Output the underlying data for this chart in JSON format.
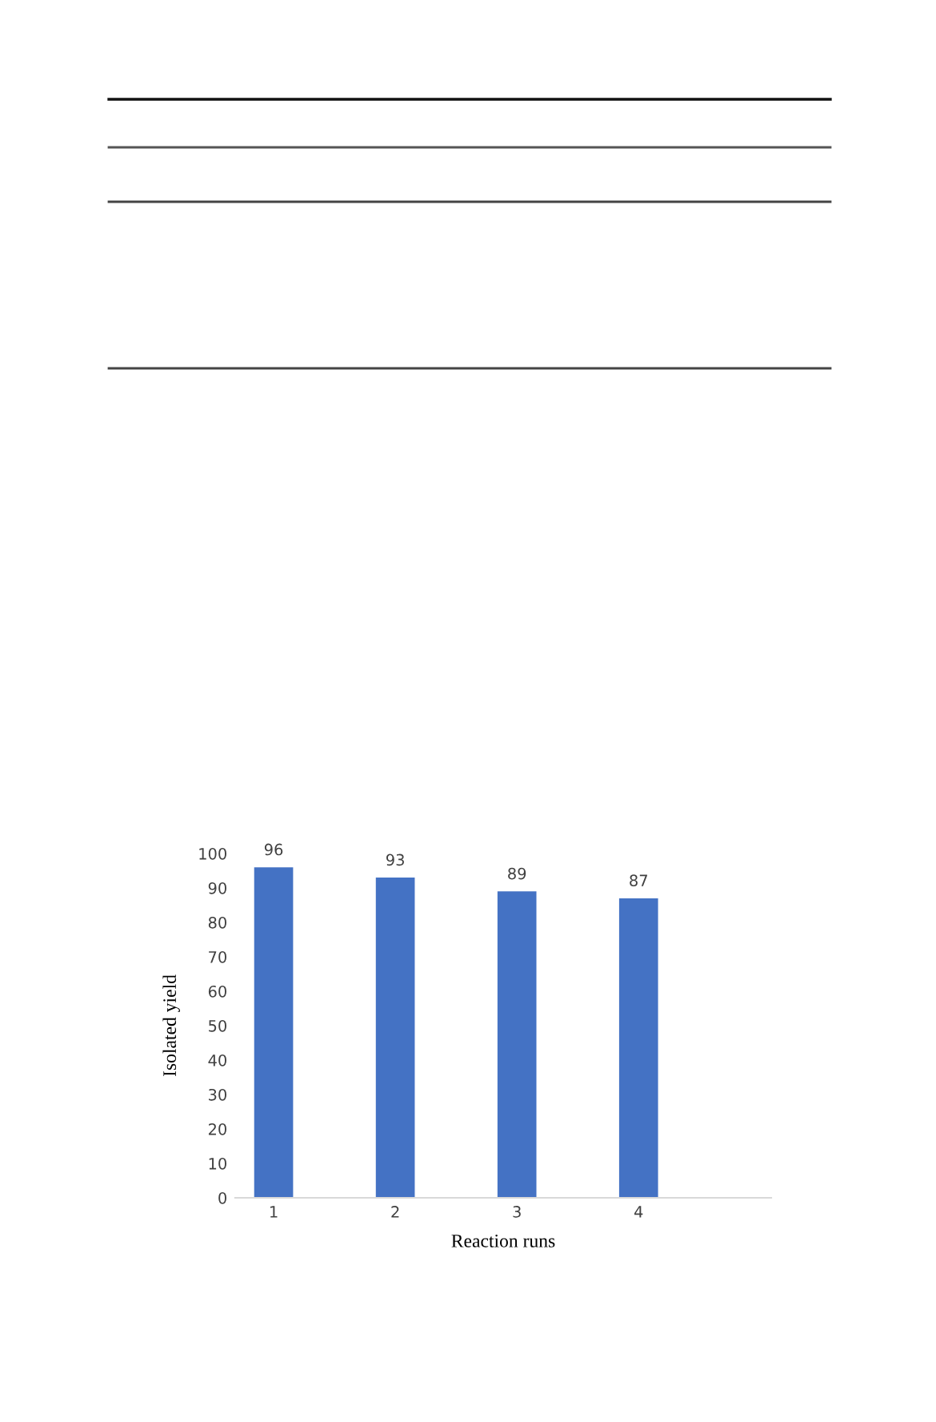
{
  "chart_data": {
    "type": "bar",
    "xlabel": "Reaction runs",
    "ylabel": "Isolated yield",
    "categories": [
      "1",
      "2",
      "3",
      "4"
    ],
    "values": [
      96,
      93,
      89,
      87
    ],
    "color": "#4472c4",
    "ylim": [
      0,
      100
    ],
    "yticks": [
      0,
      10,
      20,
      30,
      40,
      50,
      60,
      70,
      80,
      90,
      100
    ],
    "grid": false,
    "data_labels": true
  }
}
